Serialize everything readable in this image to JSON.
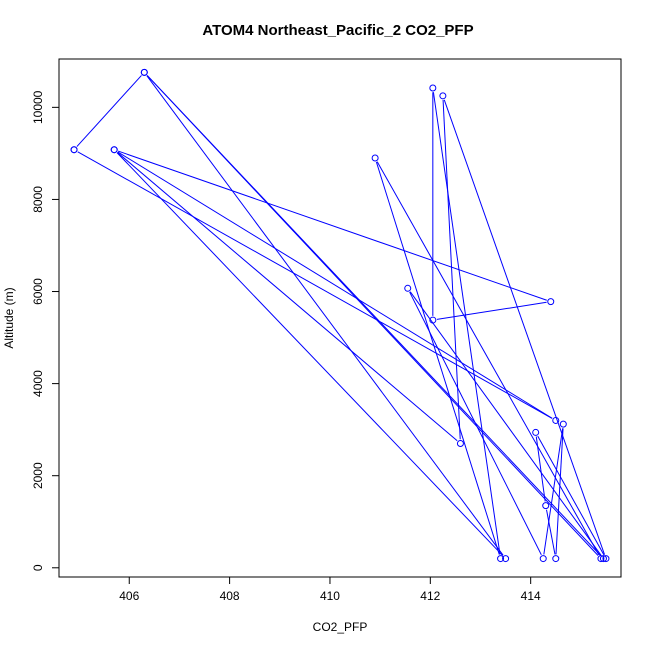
{
  "chart_data": {
    "type": "line",
    "title": "ATOM4 Northeast_Pacific_2 CO2_PFP",
    "xlabel": "CO2_PFP",
    "ylabel": "Altitude (m)",
    "xlim": [
      404.6,
      415.8
    ],
    "ylim": [
      -200,
      11050
    ],
    "xticks": [
      406,
      408,
      410,
      412,
      414
    ],
    "yticks": [
      0,
      2000,
      4000,
      6000,
      8000,
      10000
    ],
    "grid": false,
    "legend": "none",
    "color": "#0000ff",
    "series": [
      {
        "x": [
          404.9,
          414.5,
          405.7,
          413.5,
          406.3,
          415.4,
          410.9,
          413.4,
          412.05,
          412.05,
          414.4,
          405.7,
          412.6,
          412.25,
          415.5,
          414.1,
          414.3,
          414.5,
          414.65,
          414.25,
          411.55,
          415.45,
          406.3,
          404.9
        ],
        "y": [
          9080,
          3200,
          9080,
          200,
          10760,
          200,
          8900,
          200,
          10420,
          5380,
          5780,
          9080,
          2700,
          10250,
          200,
          2940,
          1350,
          200,
          3120,
          200,
          6070,
          200,
          10760,
          9080
        ]
      }
    ]
  }
}
